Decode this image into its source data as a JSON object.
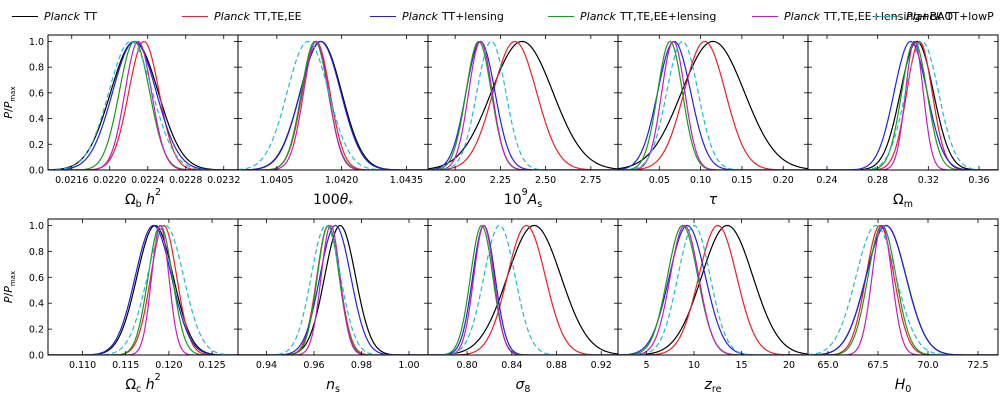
{
  "legend": [
    {
      "name": "Planck",
      "label": "TT",
      "color": "#000000",
      "dash": "solid"
    },
    {
      "name": "Planck",
      "label": "TT,TE,EE",
      "color": "#e8202a",
      "dash": "solid"
    },
    {
      "name": "Planck",
      "label": "TT+lensing",
      "color": "#2222dd",
      "dash": "solid"
    },
    {
      "name": "Planck",
      "label": "TT,TE,EE+lensing",
      "color": "#1a9a1a",
      "dash": "solid"
    },
    {
      "name": "Planck",
      "label": "TT,TE,EE+lensing+BAO",
      "color": "#c21dc2",
      "dash": "solid"
    },
    {
      "name": "Planck",
      "label": "TT+lowP",
      "color": "#22bbcc",
      "dash": "dashed"
    }
  ],
  "chart_data": [
    {
      "type": "line",
      "xlabel": "Ωb h²",
      "ylabel": "P/Pmax",
      "ylim": [
        0,
        1.05
      ],
      "yticks": [
        "0.0",
        "0.2",
        "0.4",
        "0.6",
        "0.8",
        "1.0"
      ],
      "xlim": [
        0.02135,
        0.02335
      ],
      "xticks": [
        0.0216,
        0.022,
        0.0224,
        0.0228,
        0.0232
      ],
      "xtick_labels": [
        "0.0216",
        "0.0220",
        "0.0224",
        "0.0228",
        "0.0232"
      ],
      "series": [
        {
          "name": "TT",
          "mean": 0.02226,
          "sigma": 0.00025
        },
        {
          "name": "TT,TE,EE",
          "mean": 0.02236,
          "sigma": 0.00016
        },
        {
          "name": "TT+lensing",
          "mean": 0.02226,
          "sigma": 0.00023
        },
        {
          "name": "TT,TE,EE+lensing",
          "mean": 0.02226,
          "sigma": 0.00016
        },
        {
          "name": "TT,TE,EE+lensing+BAO",
          "mean": 0.0223,
          "sigma": 0.00014
        },
        {
          "name": "TT+lowP",
          "mean": 0.02222,
          "sigma": 0.00023
        }
      ]
    },
    {
      "type": "line",
      "xlabel": "100θ*",
      "ylabel": "P/Pmax",
      "ylim": [
        0,
        1.05
      ],
      "yticks": [
        "0.0",
        "0.2",
        "0.4",
        "0.6",
        "0.8",
        "1.0"
      ],
      "xlim": [
        1.0396,
        1.044
      ],
      "xticks": [
        1.0405,
        1.042,
        1.0435
      ],
      "xtick_labels": [
        "1.0405",
        "1.0420",
        "1.0435"
      ],
      "series": [
        {
          "name": "TT",
          "mean": 1.04152,
          "sigma": 0.00048
        },
        {
          "name": "TT,TE,EE",
          "mean": 1.04141,
          "sigma": 0.00032
        },
        {
          "name": "TT+lensing",
          "mean": 1.04151,
          "sigma": 0.00047
        },
        {
          "name": "TT,TE,EE+lensing",
          "mean": 1.04138,
          "sigma": 0.00031
        },
        {
          "name": "TT,TE,EE+lensing+BAO",
          "mean": 1.04141,
          "sigma": 0.00029
        },
        {
          "name": "TT+lowP",
          "mean": 1.04122,
          "sigma": 0.00048
        }
      ]
    },
    {
      "type": "line",
      "xlabel": "10⁹ As",
      "ylabel": "P/Pmax",
      "ylim": [
        0,
        1.05
      ],
      "yticks": [
        "0.0",
        "0.2",
        "0.4",
        "0.6",
        "0.8",
        "1.0"
      ],
      "xlim": [
        1.85,
        2.9
      ],
      "xticks": [
        2.0,
        2.25,
        2.5,
        2.75
      ],
      "xtick_labels": [
        "2.00",
        "2.25",
        "2.50",
        "2.75"
      ],
      "series": [
        {
          "name": "TT",
          "mean": 2.37,
          "sigma": 0.17
        },
        {
          "name": "TT,TE,EE",
          "mean": 2.33,
          "sigma": 0.12
        },
        {
          "name": "TT+lensing",
          "mean": 2.14,
          "sigma": 0.08
        },
        {
          "name": "TT,TE,EE+lensing",
          "mean": 2.13,
          "sigma": 0.07
        },
        {
          "name": "TT,TE,EE+lensing+BAO",
          "mean": 2.14,
          "sigma": 0.065
        },
        {
          "name": "TT+lowP",
          "mean": 2.2,
          "sigma": 0.08
        }
      ]
    },
    {
      "type": "line",
      "xlabel": "τ",
      "ylabel": "P/Pmax",
      "ylim": [
        0,
        1.05
      ],
      "yticks": [
        "0.0",
        "0.2",
        "0.4",
        "0.6",
        "0.8",
        "1.0"
      ],
      "xlim": [
        0.0,
        0.23
      ],
      "xticks": [
        0.05,
        0.1,
        0.15,
        0.2
      ],
      "xtick_labels": [
        "0.05",
        "0.10",
        "0.15",
        "0.20"
      ],
      "series": [
        {
          "name": "TT",
          "mean": 0.115,
          "sigma": 0.038
        },
        {
          "name": "TT,TE,EE",
          "mean": 0.105,
          "sigma": 0.025
        },
        {
          "name": "TT+lensing",
          "mean": 0.068,
          "sigma": 0.02
        },
        {
          "name": "TT,TE,EE+lensing",
          "mean": 0.063,
          "sigma": 0.015
        },
        {
          "name": "TT,TE,EE+lensing+BAO",
          "mean": 0.067,
          "sigma": 0.014
        },
        {
          "name": "TT+lowP",
          "mean": 0.078,
          "sigma": 0.019
        }
      ]
    },
    {
      "type": "line",
      "xlabel": "Ωm",
      "ylabel": "P/Pmax",
      "ylim": [
        0,
        1.05
      ],
      "yticks": [
        "0.0",
        "0.2",
        "0.4",
        "0.6",
        "0.8",
        "1.0"
      ],
      "xlim": [
        0.225,
        0.375
      ],
      "xticks": [
        0.24,
        0.28,
        0.32,
        0.36
      ],
      "xtick_labels": [
        "0.24",
        "0.28",
        "0.32",
        "0.36"
      ],
      "series": [
        {
          "name": "TT",
          "mean": 0.311,
          "sigma": 0.013
        },
        {
          "name": "TT,TE,EE",
          "mean": 0.313,
          "sigma": 0.01
        },
        {
          "name": "TT+lensing",
          "mean": 0.306,
          "sigma": 0.013
        },
        {
          "name": "TT,TE,EE+lensing",
          "mean": 0.309,
          "sigma": 0.01
        },
        {
          "name": "TT,TE,EE+lensing+BAO",
          "mean": 0.309,
          "sigma": 0.007
        },
        {
          "name": "TT+lowP",
          "mean": 0.315,
          "sigma": 0.013
        }
      ]
    },
    {
      "type": "line",
      "xlabel": "Ωc h²",
      "ylabel": "P/Pmax",
      "ylim": [
        0,
        1.05
      ],
      "yticks": [
        "0.0",
        "0.2",
        "0.4",
        "0.6",
        "0.8",
        "1.0"
      ],
      "xlim": [
        0.106,
        0.128
      ],
      "xticks": [
        0.11,
        0.115,
        0.12,
        0.125
      ],
      "xtick_labels": [
        "0.110",
        "0.115",
        "0.120",
        "0.125"
      ],
      "series": [
        {
          "name": "TT",
          "mean": 0.1184,
          "sigma": 0.0021
        },
        {
          "name": "TT,TE,EE",
          "mean": 0.1194,
          "sigma": 0.0015
        },
        {
          "name": "TT+lensing",
          "mean": 0.1182,
          "sigma": 0.0021
        },
        {
          "name": "TT,TE,EE+lensing",
          "mean": 0.119,
          "sigma": 0.0014
        },
        {
          "name": "TT,TE,EE+lensing+BAO",
          "mean": 0.119,
          "sigma": 0.001
        },
        {
          "name": "TT+lowP",
          "mean": 0.1196,
          "sigma": 0.0021
        }
      ]
    },
    {
      "type": "line",
      "xlabel": "ns",
      "ylabel": "P/Pmax",
      "ylim": [
        0,
        1.05
      ],
      "yticks": [
        "0.0",
        "0.2",
        "0.4",
        "0.6",
        "0.8",
        "1.0"
      ],
      "xlim": [
        0.928,
        1.008
      ],
      "xticks": [
        0.94,
        0.96,
        0.98,
        1.0
      ],
      "xtick_labels": [
        "0.94",
        "0.96",
        "0.98",
        "1.00"
      ],
      "series": [
        {
          "name": "TT",
          "mean": 0.971,
          "sigma": 0.0065
        },
        {
          "name": "TT,TE,EE",
          "mean": 0.966,
          "sigma": 0.0048
        },
        {
          "name": "TT+lensing",
          "mean": 0.969,
          "sigma": 0.0065
        },
        {
          "name": "TT,TE,EE+lensing",
          "mean": 0.966,
          "sigma": 0.0046
        },
        {
          "name": "TT,TE,EE+lensing+BAO",
          "mean": 0.967,
          "sigma": 0.004
        },
        {
          "name": "TT+lowP",
          "mean": 0.965,
          "sigma": 0.0062
        }
      ]
    },
    {
      "type": "line",
      "xlabel": "σ8",
      "ylabel": "P/Pmax",
      "ylim": [
        0,
        1.05
      ],
      "yticks": [
        "0.0",
        "0.2",
        "0.4",
        "0.6",
        "0.8",
        "1.0"
      ],
      "xlim": [
        0.765,
        0.935
      ],
      "xticks": [
        0.8,
        0.84,
        0.88,
        0.92
      ],
      "xtick_labels": [
        "0.80",
        "0.84",
        "0.88",
        "0.92"
      ],
      "series": [
        {
          "name": "TT",
          "mean": 0.86,
          "sigma": 0.024
        },
        {
          "name": "TT,TE,EE",
          "mean": 0.853,
          "sigma": 0.017
        },
        {
          "name": "TT+lensing",
          "mean": 0.815,
          "sigma": 0.01
        },
        {
          "name": "TT,TE,EE+lensing",
          "mean": 0.813,
          "sigma": 0.01
        },
        {
          "name": "TT,TE,EE+lensing+BAO",
          "mean": 0.815,
          "sigma": 0.009
        },
        {
          "name": "TT+lowP",
          "mean": 0.829,
          "sigma": 0.014
        }
      ]
    },
    {
      "type": "line",
      "xlabel": "zre",
      "ylabel": "P/Pmax",
      "ylim": [
        0,
        1.05
      ],
      "yticks": [
        "0.0",
        "0.2",
        "0.4",
        "0.6",
        "0.8",
        "1.0"
      ],
      "xlim": [
        2.0,
        22.0
      ],
      "xticks": [
        5,
        10,
        15,
        20
      ],
      "xtick_labels": [
        "5",
        "10",
        "15",
        "20"
      ],
      "series": [
        {
          "name": "TT",
          "mean": 13.5,
          "sigma": 2.7
        },
        {
          "name": "TT,TE,EE",
          "mean": 12.5,
          "sigma": 2.0
        },
        {
          "name": "TT+lensing",
          "mean": 9.3,
          "sigma": 1.9
        },
        {
          "name": "TT,TE,EE+lensing",
          "mean": 8.8,
          "sigma": 1.6
        },
        {
          "name": "TT,TE,EE+lensing+BAO",
          "mean": 9.0,
          "sigma": 1.5
        },
        {
          "name": "TT+lowP",
          "mean": 10.0,
          "sigma": 1.7
        }
      ]
    },
    {
      "type": "line",
      "xlabel": "H0",
      "ylabel": "P/Pmax",
      "ylim": [
        0,
        1.05
      ],
      "yticks": [
        "0.0",
        "0.2",
        "0.4",
        "0.6",
        "0.8",
        "1.0"
      ],
      "xlim": [
        64.0,
        73.5
      ],
      "xticks": [
        65.0,
        67.5,
        70.0,
        72.5
      ],
      "xtick_labels": [
        "65.0",
        "67.5",
        "70.0",
        "72.5"
      ],
      "series": [
        {
          "name": "TT",
          "mean": 67.9,
          "sigma": 1.0
        },
        {
          "name": "TT,TE,EE",
          "mean": 67.6,
          "sigma": 0.7
        },
        {
          "name": "TT+lensing",
          "mean": 67.9,
          "sigma": 1.0
        },
        {
          "name": "TT,TE,EE+lensing",
          "mean": 67.7,
          "sigma": 0.7
        },
        {
          "name": "TT,TE,EE+lensing+BAO",
          "mean": 67.7,
          "sigma": 0.5
        },
        {
          "name": "TT+lowP",
          "mean": 67.4,
          "sigma": 1.0
        }
      ]
    }
  ]
}
